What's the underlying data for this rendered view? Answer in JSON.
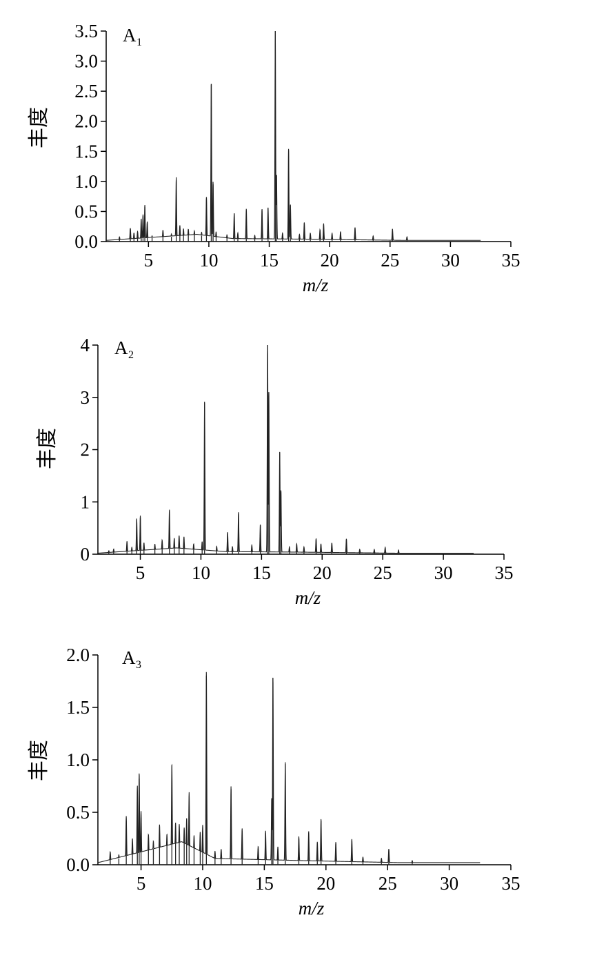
{
  "chart_data": [
    {
      "type": "line",
      "panel_label": "A",
      "panel_sub": "1",
      "xlabel": "m/z",
      "ylabel": "丰度",
      "xlim": [
        1.5,
        35
      ],
      "ylim": [
        0,
        3.5
      ],
      "xticks": [
        5,
        10,
        15,
        20,
        25,
        30,
        35
      ],
      "yticks": [
        "0.0",
        "0.5",
        "1.0",
        "1.5",
        "2.0",
        "2.5",
        "3.0",
        "3.5"
      ],
      "series": [
        {
          "peaks": [
            [
              2.6,
              0.06
            ],
            [
              3.5,
              0.2
            ],
            [
              3.8,
              0.12
            ],
            [
              4.1,
              0.14
            ],
            [
              4.4,
              0.35
            ],
            [
              4.55,
              0.42
            ],
            [
              4.7,
              0.58
            ],
            [
              4.9,
              0.3
            ],
            [
              5.3,
              0.06
            ],
            [
              6.2,
              0.15
            ],
            [
              6.9,
              0.08
            ],
            [
              7.3,
              1.02
            ],
            [
              7.6,
              0.22
            ],
            [
              7.9,
              0.16
            ],
            [
              8.3,
              0.15
            ],
            [
              8.8,
              0.12
            ],
            [
              9.4,
              0.1
            ],
            [
              9.8,
              0.7
            ],
            [
              10.2,
              2.62
            ],
            [
              10.35,
              0.95
            ],
            [
              10.6,
              0.12
            ],
            [
              11.5,
              0.08
            ],
            [
              12.1,
              0.45
            ],
            [
              12.4,
              0.12
            ],
            [
              13.1,
              0.52
            ],
            [
              13.8,
              0.08
            ],
            [
              14.4,
              0.52
            ],
            [
              14.9,
              0.55
            ],
            [
              15.5,
              3.5
            ],
            [
              15.6,
              1.1
            ],
            [
              16.1,
              0.12
            ],
            [
              16.6,
              1.52
            ],
            [
              16.75,
              0.6
            ],
            [
              17.5,
              0.1
            ],
            [
              17.9,
              0.3
            ],
            [
              18.4,
              0.12
            ],
            [
              19.2,
              0.18
            ],
            [
              19.5,
              0.28
            ],
            [
              20.2,
              0.12
            ],
            [
              20.9,
              0.15
            ],
            [
              22.1,
              0.22
            ],
            [
              23.6,
              0.08
            ],
            [
              25.2,
              0.2
            ],
            [
              26.4,
              0.07
            ]
          ],
          "baseline": [
            [
              1.5,
              0.02
            ],
            [
              9,
              0.12
            ],
            [
              12,
              0.05
            ],
            [
              18,
              0.04
            ],
            [
              26,
              0.02
            ],
            [
              32.5,
              0.02
            ]
          ]
        }
      ]
    },
    {
      "type": "line",
      "panel_label": "A",
      "panel_sub": "2",
      "xlabel": "m/z",
      "ylabel": "丰度",
      "xlim": [
        1.5,
        35
      ],
      "ylim": [
        0,
        4
      ],
      "xticks": [
        5,
        10,
        15,
        20,
        25,
        30,
        35
      ],
      "yticks": [
        "0",
        "1",
        "2",
        "3",
        "4"
      ],
      "series": [
        {
          "peaks": [
            [
              2.4,
              0.05
            ],
            [
              2.8,
              0.08
            ],
            [
              3.9,
              0.22
            ],
            [
              4.3,
              0.1
            ],
            [
              4.7,
              0.65
            ],
            [
              5.0,
              0.7
            ],
            [
              5.3,
              0.18
            ],
            [
              6.2,
              0.15
            ],
            [
              6.8,
              0.22
            ],
            [
              7.4,
              0.8
            ],
            [
              7.8,
              0.25
            ],
            [
              8.2,
              0.3
            ],
            [
              8.6,
              0.28
            ],
            [
              9.4,
              0.15
            ],
            [
              10.1,
              0.2
            ],
            [
              10.3,
              2.9
            ],
            [
              11.3,
              0.12
            ],
            [
              12.2,
              0.4
            ],
            [
              12.6,
              0.12
            ],
            [
              13.1,
              0.78
            ],
            [
              14.2,
              0.15
            ],
            [
              14.9,
              0.55
            ],
            [
              15.5,
              4.08
            ],
            [
              15.6,
              3.1
            ],
            [
              16.5,
              1.95
            ],
            [
              16.6,
              1.2
            ],
            [
              17.3,
              0.12
            ],
            [
              17.9,
              0.18
            ],
            [
              18.5,
              0.12
            ],
            [
              19.5,
              0.28
            ],
            [
              19.9,
              0.18
            ],
            [
              20.8,
              0.2
            ],
            [
              22.0,
              0.28
            ],
            [
              23.1,
              0.08
            ],
            [
              24.3,
              0.08
            ],
            [
              25.2,
              0.12
            ],
            [
              26.3,
              0.07
            ]
          ],
          "baseline": [
            [
              1.5,
              0.02
            ],
            [
              8,
              0.12
            ],
            [
              12,
              0.05
            ],
            [
              18,
              0.04
            ],
            [
              26,
              0.02
            ],
            [
              32.5,
              0.02
            ]
          ]
        }
      ]
    },
    {
      "type": "line",
      "panel_label": "A",
      "panel_sub": "3",
      "xlabel": "m/z",
      "ylabel": "丰度",
      "xlim": [
        1.5,
        35
      ],
      "ylim": [
        0,
        2.0
      ],
      "xticks": [
        5,
        10,
        15,
        20,
        25,
        30,
        35
      ],
      "yticks": [
        "0.0",
        "0.5",
        "1.0",
        "1.5",
        "2.0"
      ],
      "series": [
        {
          "peaks": [
            [
              2.5,
              0.1
            ],
            [
              3.2,
              0.06
            ],
            [
              3.8,
              0.42
            ],
            [
              4.3,
              0.2
            ],
            [
              4.7,
              0.7
            ],
            [
              4.85,
              0.82
            ],
            [
              5.0,
              0.45
            ],
            [
              5.6,
              0.22
            ],
            [
              6.0,
              0.15
            ],
            [
              6.5,
              0.3
            ],
            [
              7.1,
              0.2
            ],
            [
              7.5,
              0.87
            ],
            [
              7.8,
              0.3
            ],
            [
              8.1,
              0.28
            ],
            [
              8.5,
              0.25
            ],
            [
              8.7,
              0.35
            ],
            [
              8.9,
              0.6
            ],
            [
              9.3,
              0.2
            ],
            [
              9.8,
              0.25
            ],
            [
              10.0,
              0.32
            ],
            [
              10.3,
              1.8
            ],
            [
              11.0,
              0.1
            ],
            [
              11.5,
              0.12
            ],
            [
              12.3,
              0.72
            ],
            [
              13.2,
              0.32
            ],
            [
              14.5,
              0.15
            ],
            [
              15.1,
              0.3
            ],
            [
              15.6,
              0.62
            ],
            [
              15.7,
              1.78
            ],
            [
              16.1,
              0.15
            ],
            [
              16.7,
              0.96
            ],
            [
              17.8,
              0.25
            ],
            [
              18.6,
              0.3
            ],
            [
              19.3,
              0.2
            ],
            [
              19.6,
              0.42
            ],
            [
              20.8,
              0.2
            ],
            [
              22.1,
              0.23
            ],
            [
              23.0,
              0.06
            ],
            [
              24.5,
              0.05
            ],
            [
              25.1,
              0.14
            ],
            [
              27.0,
              0.03
            ]
          ],
          "baseline": [
            [
              1.5,
              0.02
            ],
            [
              8.3,
              0.22
            ],
            [
              11,
              0.06
            ],
            [
              18,
              0.04
            ],
            [
              26,
              0.02
            ],
            [
              32.5,
              0.02
            ]
          ]
        }
      ]
    }
  ]
}
